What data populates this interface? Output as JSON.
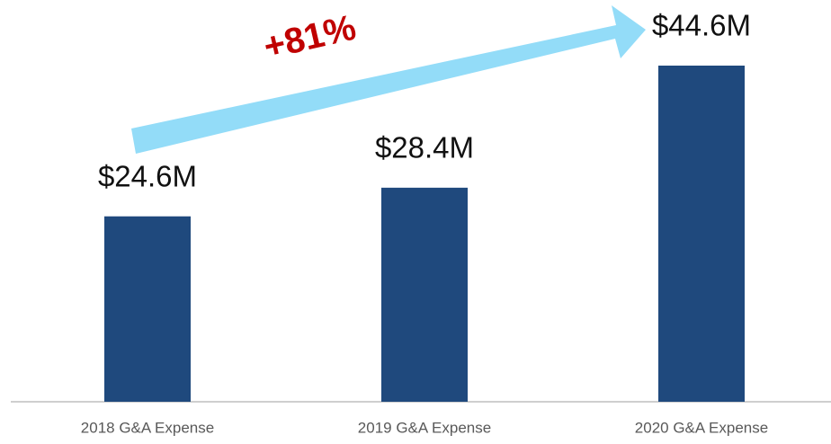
{
  "chart_data": {
    "type": "bar",
    "categories": [
      "2018 G&A Expense",
      "2019 G&A Expense",
      "2020 G&A Expense"
    ],
    "values": [
      24.6,
      28.4,
      44.6
    ],
    "value_labels": [
      "$24.6M",
      "$28.4M",
      "$44.6M"
    ],
    "color": "#1f497d",
    "annotation": "+81%",
    "annotation_color": "#c00000",
    "arrow_color": "#93dcf8"
  }
}
